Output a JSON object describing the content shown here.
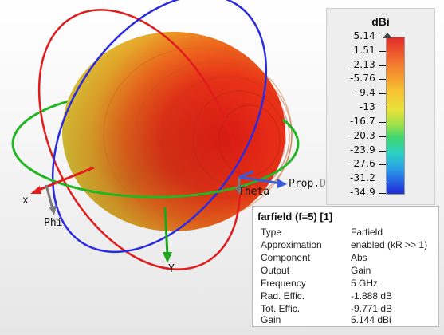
{
  "viewport": {
    "axis_labels": {
      "x": "x",
      "y": "Y",
      "phi": "Phi",
      "theta": "Theta",
      "prop_dir_prefix": "Prop.",
      "prop_dir_suffix": "Dir."
    }
  },
  "scale": {
    "title": "dBi",
    "ticks": [
      "5.14",
      "1.51",
      "-2.13",
      "-5.76",
      "-9.4",
      "-13",
      "-16.7",
      "-20.3",
      "-23.9",
      "-27.6",
      "-31.2",
      "-34.9"
    ],
    "colors": {
      "max": "#e22b2b",
      "mid": "#e9e13a",
      "min": "#1f2ad4"
    }
  },
  "info_panel": {
    "title": "farfield (f=5) [1]",
    "rows": [
      {
        "key": "Type",
        "value": "Farfield"
      },
      {
        "key": "Approximation",
        "value": "enabled (kR >> 1)"
      },
      {
        "key": "Component",
        "value": "Abs"
      },
      {
        "key": "Output",
        "value": "Gain"
      },
      {
        "key": "Frequency",
        "value": "5 GHz"
      },
      {
        "key": "Rad. Effic.",
        "value": "-1.888 dB"
      },
      {
        "key": "Tot. Effic.",
        "value": "-9.771 dB"
      },
      {
        "key": "Gain",
        "value": "5.144 dBi"
      }
    ]
  }
}
